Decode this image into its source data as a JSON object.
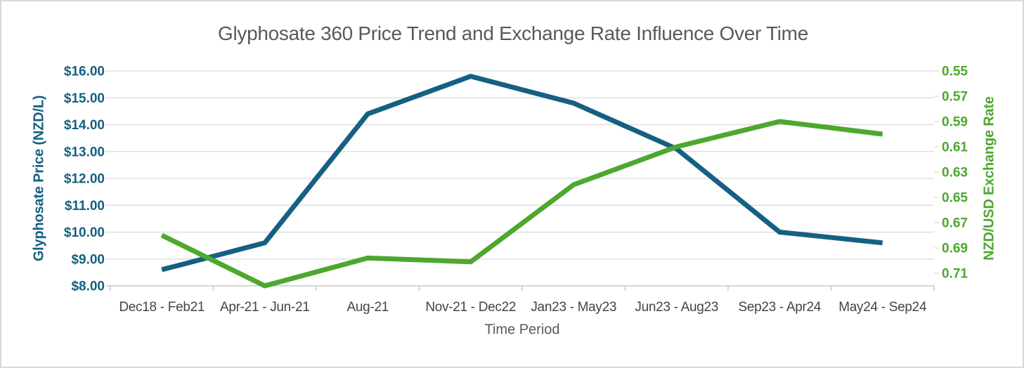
{
  "chart_data": {
    "type": "line",
    "title": "Glyphosate 360 Price Trend and Exchange Rate Influence Over Time",
    "xlabel": "Time Period",
    "categories": [
      "Dec18 - Feb21",
      "Apr-21 - Jun-21",
      "Aug-21",
      "Nov-21 - Dec22",
      "Jan23 - May23",
      "Jun23 - Aug23",
      "Sep23 - Apr24",
      "May24 - Sep24"
    ],
    "series": [
      {
        "name": "Glyphosate Price (NZD/L)",
        "axis": "left",
        "color": "#156082",
        "values": [
          8.6,
          9.6,
          14.4,
          15.8,
          14.8,
          13.1,
          10.0,
          9.6
        ]
      },
      {
        "name": "NZD/USD Exchange Rate",
        "axis": "right",
        "color": "#4EA72E",
        "values": [
          0.68,
          0.72,
          0.698,
          0.701,
          0.64,
          0.61,
          0.59,
          0.6
        ]
      }
    ],
    "left_axis": {
      "title": "Glyphosate Price (NZD/L)",
      "min": 8,
      "max": 16,
      "step": 1,
      "tick_labels": [
        "$16.00",
        "$15.00",
        "$14.00",
        "$13.00",
        "$12.00",
        "$11.00",
        "$10.00",
        "$9.00",
        "$8.00"
      ]
    },
    "right_axis": {
      "title": "NZD/USD Exchange Rate",
      "min": 0.55,
      "max": 0.72,
      "step": 0.02,
      "reversed": true,
      "tick_labels": [
        "0.55",
        "0.57",
        "0.59",
        "0.61",
        "0.63",
        "0.65",
        "0.67",
        "0.69",
        "0.71"
      ]
    },
    "grid": true,
    "legend": "none",
    "colors": {
      "grid": "#D9D9D9",
      "axis_line": "#BFBFBF",
      "title_text": "#595959",
      "x_tick_text": "#444444"
    }
  }
}
